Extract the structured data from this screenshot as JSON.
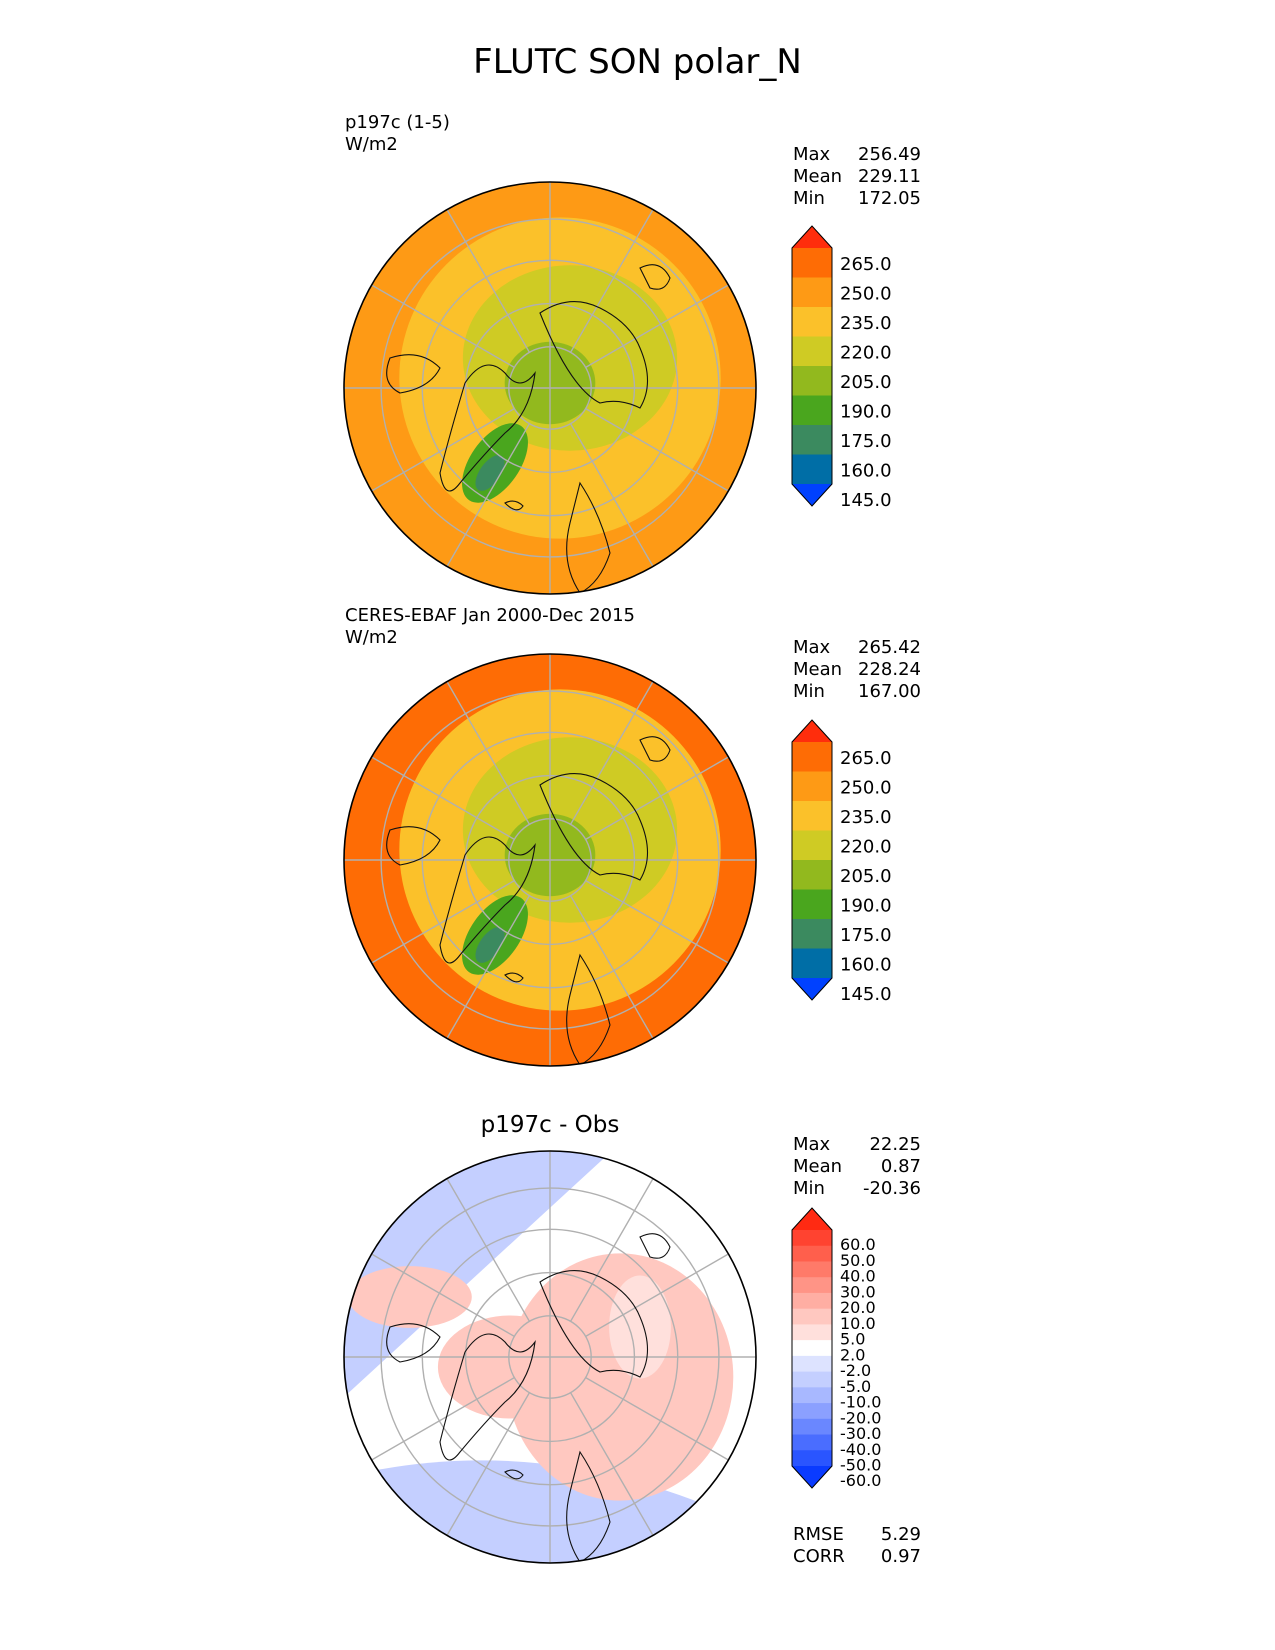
{
  "title": "FLUTC SON polar_N",
  "chart_data": [
    {
      "type": "heatmap",
      "projection": "north polar stereographic",
      "label_line1": "p197c (1-5)",
      "label_line2": "W/m2",
      "stats": [
        {
          "name": "Max",
          "value": "256.49"
        },
        {
          "name": "Mean",
          "value": "229.11"
        },
        {
          "name": "Min",
          "value": "172.05"
        }
      ],
      "colorbar": {
        "ticks": [
          "265.0",
          "250.0",
          "235.0",
          "220.0",
          "205.0",
          "190.0",
          "175.0",
          "160.0",
          "145.0"
        ],
        "colors": [
          "#0041ff",
          "#006ea6",
          "#3b8a5f",
          "#4aa61e",
          "#92b91e",
          "#cfcb24",
          "#fbc12a",
          "#fe9a15",
          "#fe6c05",
          "#ff2d0c"
        ]
      },
      "field": {
        "pole": 200,
        "inner_ring": 220,
        "mid_ring": 232,
        "outer": 248
      }
    },
    {
      "type": "heatmap",
      "projection": "north polar stereographic",
      "label_line1": "CERES-EBAF Jan 2000-Dec 2015",
      "label_line2": "W/m2",
      "stats": [
        {
          "name": "Max",
          "value": "265.42"
        },
        {
          "name": "Mean",
          "value": "228.24"
        },
        {
          "name": "Min",
          "value": "167.00"
        }
      ],
      "colorbar": {
        "ticks": [
          "265.0",
          "250.0",
          "235.0",
          "220.0",
          "205.0",
          "190.0",
          "175.0",
          "160.0",
          "145.0"
        ],
        "colors": [
          "#0041ff",
          "#006ea6",
          "#3b8a5f",
          "#4aa61e",
          "#92b91e",
          "#cfcb24",
          "#fbc12a",
          "#fe9a15",
          "#fe6c05",
          "#ff2d0c"
        ]
      },
      "field": {
        "pole": 205,
        "inner_ring": 215,
        "mid_ring": 230,
        "outer": 252
      }
    },
    {
      "type": "heatmap",
      "projection": "north polar stereographic",
      "title": "p197c - Obs",
      "stats": [
        {
          "name": "Max",
          "value": "22.25"
        },
        {
          "name": "Mean",
          "value": "0.87"
        },
        {
          "name": "Min",
          "value": "-20.36"
        }
      ],
      "colorbar": {
        "ticks": [
          "60.0",
          "50.0",
          "40.0",
          "30.0",
          "20.0",
          "10.0",
          "5.0",
          "2.0",
          "-2.0",
          "-5.0",
          "-10.0",
          "-20.0",
          "-30.0",
          "-40.0",
          "-50.0",
          "-60.0"
        ],
        "colors": [
          "#0a3bff",
          "#2a55ff",
          "#4a6dff",
          "#6a87ff",
          "#8ba0ff",
          "#a8b8ff",
          "#c4cfff",
          "#dde3ff",
          "#ffffff",
          "#ffe0dc",
          "#ffc8c0",
          "#ffaea3",
          "#ff9486",
          "#ff7a69",
          "#ff5f4c",
          "#ff4330",
          "#ff2a12"
        ]
      },
      "rmse": {
        "name": "RMSE",
        "value": "5.29"
      },
      "corr": {
        "name": "CORR",
        "value": "0.97"
      }
    }
  ]
}
